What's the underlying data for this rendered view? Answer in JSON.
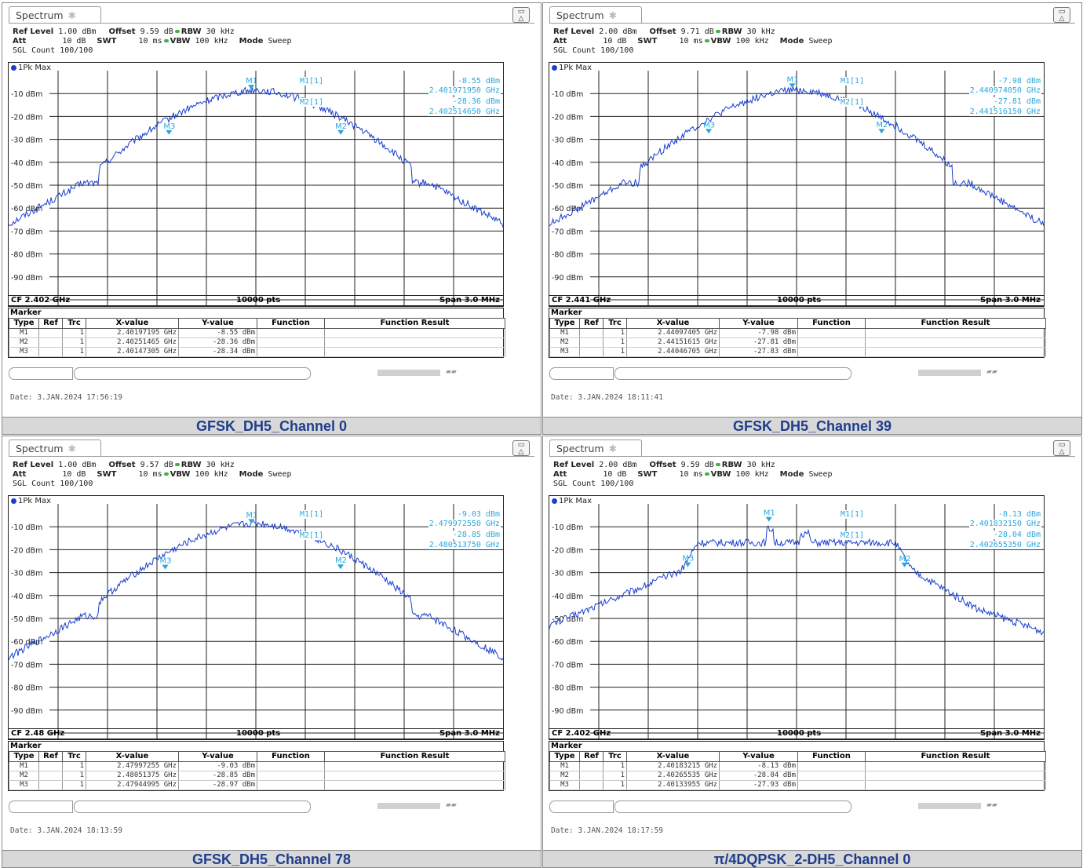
{
  "panels": [
    {
      "tab_title": "Spectrum",
      "ref_level": "1.00 dBm",
      "offset": "9.59 dB",
      "rbw": "30 kHz",
      "att": "10 dB",
      "swt": "10 ms",
      "vbw": "100 kHz",
      "mode": "Sweep",
      "sgl_count": "SGL Count 100/100",
      "trace_label": "1Pk Max",
      "m1_label": "M1[1]",
      "m1_level": "-8.55 dBm",
      "m1_freq": "2.401971950 GHz",
      "m2_label": "M2[1]",
      "m2_level": "-28.36 dBm",
      "m2_freq": "2.402514650 GHz",
      "cf": "CF 2.402 GHz",
      "pts": "10000 pts",
      "span": "Span 3.0 MHz",
      "markers": [
        {
          "type": "M1",
          "ref": "",
          "trc": "1",
          "x": "2.40197195 GHz",
          "y": "-8.55 dBm",
          "func": "",
          "result": ""
        },
        {
          "type": "M2",
          "ref": "",
          "trc": "1",
          "x": "2.40251465 GHz",
          "y": "-28.36 dBm",
          "func": "",
          "result": ""
        },
        {
          "type": "M3",
          "ref": "",
          "trc": "1",
          "x": "2.40147305 GHz",
          "y": "-28.34 dBm",
          "func": "",
          "result": ""
        }
      ],
      "date": "Date: 3.JAN.2024  17:56:19",
      "caption": "GFSK_DH5_Channel 0",
      "shape": "gfsk",
      "m1_offset_mhz": -0.028,
      "m2_offset_mhz": 0.515,
      "m3_offset_mhz": -0.527
    },
    {
      "tab_title": "Spectrum",
      "ref_level": "2.00 dBm",
      "offset": "9.71 dB",
      "rbw": "30 kHz",
      "att": "10 dB",
      "swt": "10 ms",
      "vbw": "100 kHz",
      "mode": "Sweep",
      "sgl_count": "SGL Count 100/100",
      "trace_label": "1Pk Max",
      "m1_label": "M1[1]",
      "m1_level": "-7.98 dBm",
      "m1_freq": "2.440974050 GHz",
      "m2_label": "M2[1]",
      "m2_level": "-27.81 dBm",
      "m2_freq": "2.441516150 GHz",
      "cf": "CF 2.441 GHz",
      "pts": "10000 pts",
      "span": "Span 3.0 MHz",
      "markers": [
        {
          "type": "M1",
          "ref": "",
          "trc": "1",
          "x": "2.44097405 GHz",
          "y": "-7.98 dBm",
          "func": "",
          "result": ""
        },
        {
          "type": "M2",
          "ref": "",
          "trc": "1",
          "x": "2.44151615 GHz",
          "y": "-27.81 dBm",
          "func": "",
          "result": ""
        },
        {
          "type": "M3",
          "ref": "",
          "trc": "1",
          "x": "2.44046705 GHz",
          "y": "-27.83 dBm",
          "func": "",
          "result": ""
        }
      ],
      "date": "Date: 3.JAN.2024  18:11:41",
      "caption": "GFSK_DH5_Channel 39",
      "shape": "gfsk",
      "m1_offset_mhz": -0.026,
      "m2_offset_mhz": 0.516,
      "m3_offset_mhz": -0.533
    },
    {
      "tab_title": "Spectrum",
      "ref_level": "1.00 dBm",
      "offset": "9.57 dB",
      "rbw": "30 kHz",
      "att": "10 dB",
      "swt": "10 ms",
      "vbw": "100 kHz",
      "mode": "Sweep",
      "sgl_count": "SGL Count 100/100",
      "trace_label": "1Pk Max",
      "m1_label": "M1[1]",
      "m1_level": "-9.03 dBm",
      "m1_freq": "2.479972550 GHz",
      "m2_label": "M2[1]",
      "m2_level": "-28.85 dBm",
      "m2_freq": "2.480513750 GHz",
      "cf": "CF 2.48 GHz",
      "pts": "10000 pts",
      "span": "Span 3.0 MHz",
      "markers": [
        {
          "type": "M1",
          "ref": "",
          "trc": "1",
          "x": "2.47997255 GHz",
          "y": "-9.03 dBm",
          "func": "",
          "result": ""
        },
        {
          "type": "M2",
          "ref": "",
          "trc": "1",
          "x": "2.48051375 GHz",
          "y": "-28.85 dBm",
          "func": "",
          "result": ""
        },
        {
          "type": "M3",
          "ref": "",
          "trc": "1",
          "x": "2.47944995 GHz",
          "y": "-28.97 dBm",
          "func": "",
          "result": ""
        }
      ],
      "date": "Date: 3.JAN.2024  18:13:59",
      "caption": "GFSK_DH5_Channel 78",
      "shape": "gfsk",
      "m1_offset_mhz": -0.027,
      "m2_offset_mhz": 0.514,
      "m3_offset_mhz": -0.55
    },
    {
      "tab_title": "Spectrum",
      "ref_level": "2.00 dBm",
      "offset": "9.59 dB",
      "rbw": "30 kHz",
      "att": "10 dB",
      "swt": "10 ms",
      "vbw": "100 kHz",
      "mode": "Sweep",
      "sgl_count": "SGL Count 100/100",
      "trace_label": "1Pk Max",
      "m1_label": "M1[1]",
      "m1_level": "-8.13 dBm",
      "m1_freq": "2.401832150 GHz",
      "m2_label": "M2[1]",
      "m2_level": "-28.04 dBm",
      "m2_freq": "2.402655350 GHz",
      "cf": "CF 2.402 GHz",
      "pts": "10000 pts",
      "span": "Span 3.0 MHz",
      "markers": [
        {
          "type": "M1",
          "ref": "",
          "trc": "1",
          "x": "2.40183215 GHz",
          "y": "-8.13 dBm",
          "func": "",
          "result": ""
        },
        {
          "type": "M2",
          "ref": "",
          "trc": "1",
          "x": "2.40265535 GHz",
          "y": "-28.04 dBm",
          "func": "",
          "result": ""
        },
        {
          "type": "M3",
          "ref": "",
          "trc": "1",
          "x": "2.40133955 GHz",
          "y": "-27.93 dBm",
          "func": "",
          "result": ""
        }
      ],
      "date": "Date: 3.JAN.2024  18:17:59",
      "caption": "π/4DQPSK_2-DH5_Channel 0",
      "shape": "dqpsk",
      "m1_offset_mhz": -0.168,
      "m2_offset_mhz": 0.655,
      "m3_offset_mhz": -0.66
    }
  ],
  "labels": {
    "ref_level": "Ref Level",
    "offset": "Offset",
    "rbw": "RBW",
    "att": "Att",
    "swt": "SWT",
    "vbw": "VBW",
    "mode": "Mode",
    "marker": "Marker",
    "col_type": "Type",
    "col_ref": "Ref",
    "col_trc": "Trc",
    "col_x": "X-value",
    "col_y": "Y-value",
    "col_function": "Function",
    "col_result": "Function Result"
  },
  "y_ticks": [
    "-10 dBm",
    "-20 dBm",
    "-30 dBm",
    "-40 dBm",
    "-50 dBm",
    "-60 dBm",
    "-70 dBm",
    "-80 dBm",
    "-90 dBm"
  ],
  "colors": {
    "trace": "#1a3fd0",
    "marker_text": "#2aa7df",
    "grid": "#222222",
    "caption_bg": "#d8d8d8",
    "caption_text": "#1f3d8c"
  }
}
